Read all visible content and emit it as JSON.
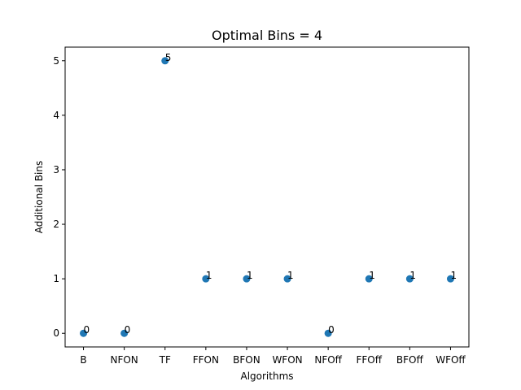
{
  "chart_data": {
    "type": "scatter",
    "title": "Optimal Bins = 4",
    "xlabel": "Algorithms",
    "ylabel": "Additional Bins",
    "categories": [
      "B",
      "NFON",
      "TF",
      "FFON",
      "BFON",
      "WFON",
      "NFOff",
      "FFOff",
      "BFOff",
      "WFOff"
    ],
    "values": [
      0,
      0,
      5,
      1,
      1,
      1,
      0,
      1,
      1,
      1
    ],
    "data_labels": [
      "0",
      "0",
      "5",
      "1",
      "1",
      "1",
      "0",
      "1",
      "1",
      "1"
    ],
    "y_ticks": [
      0,
      1,
      2,
      3,
      4,
      5
    ],
    "y_tick_labels": [
      "0",
      "1",
      "2",
      "3",
      "4",
      "5"
    ],
    "ylim": [
      -0.25,
      5.25
    ],
    "grid": false,
    "legend": "none",
    "marker_color": "#1f77b4"
  }
}
